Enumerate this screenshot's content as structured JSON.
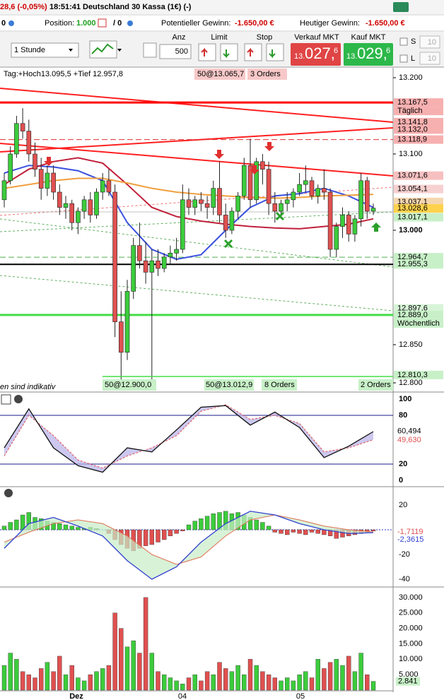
{
  "header": {
    "change": "28,6 (-0,05%)",
    "time": "18:51:41",
    "instrument": "Deutschland 30 Kassa (1€) (-)"
  },
  "status": {
    "zero": "0",
    "position_label": "Position:",
    "position": "1.000",
    "slash": "/ 0",
    "potential_label": "Potentieller Gewinn:",
    "potential": "-1.650,00 €",
    "today_label": "Heutiger Gewinn:",
    "today": "-1.650,00 €"
  },
  "toolbar": {
    "interval": "1 Stunde",
    "qty_label": "Anz",
    "qty": "500",
    "limit": "Limit",
    "stop": "Stop",
    "sell_label": "Verkauf MKT",
    "sell_price": [
      "13.",
      "027,",
      "6"
    ],
    "buy_label": "Kauf MKT",
    "buy_price": [
      "13.",
      "029,",
      "6"
    ],
    "s_label": "S",
    "s_value": "10",
    "l_label": "L",
    "l_value": "10"
  },
  "chart": {
    "day_info": "Tag:+Hoch13.095,5 +Tief 12.957,8",
    "top_orders": [
      "50@13.065,7",
      "3 Orders"
    ],
    "bottom_orders": [
      "50@12.900,0",
      "50@13.012,9",
      "8 Orders",
      "2 Orders"
    ],
    "disclaimer": "en sind indikativ",
    "x_labels": [
      "Dez",
      "04",
      "05"
    ],
    "price_ticks": [
      {
        "value": 13200,
        "label": "13.200"
      },
      {
        "value": 13100,
        "label": "13.100"
      },
      {
        "value": 13000,
        "label": "13.000"
      },
      {
        "value": 12850,
        "label": "12.850"
      },
      {
        "value": 12800,
        "label": "12.800"
      }
    ],
    "price_tags": [
      {
        "value": 13167.5,
        "label": "13.167,5",
        "caption": "Täglich",
        "color": "#f7b0b0",
        "line": "solid",
        "line_color": "#ff0000"
      },
      {
        "value": 13141.8,
        "label": "13.141,8",
        "color": "#f7b0b0"
      },
      {
        "value": 13132.0,
        "label": "13.132,0",
        "color": "#f7b0b0"
      },
      {
        "value": 13118.9,
        "label": "13.118,9",
        "color": "#f7b0b0",
        "line": "dashed",
        "line_color": "#e03030"
      },
      {
        "value": 13071.6,
        "label": "13.071,6",
        "color": "#f7c0c0"
      },
      {
        "value": 13054.1,
        "label": "13.054,1",
        "color": "#f7d0d0"
      },
      {
        "value": 13037.1,
        "label": "13.037,1",
        "color": "#f5d6b0"
      },
      {
        "value": 13028.6,
        "label": "13.028,6",
        "color": "#ffd24d"
      },
      {
        "value": 13017.1,
        "label": "13.017,1",
        "color": "#c8f0c8"
      },
      {
        "value": 12964.7,
        "label": "12.964,7",
        "color": "#c8f0c8",
        "line": "dashed",
        "line_color": "#50b050"
      },
      {
        "value": 12955.3,
        "label": "12.955,3",
        "color": "#c8f0c8",
        "line": "solid",
        "line_color": "#000000"
      },
      {
        "value": 12897.6,
        "label": "12.897,6",
        "color": "#d8f4d8"
      },
      {
        "value": 12889.0,
        "label": "12.889,0",
        "caption": "Wöchentlich",
        "color": "#c8f0c8",
        "line": "solid",
        "line_color": "#44dd44"
      },
      {
        "value": 12810.3,
        "label": "12.810,3",
        "color": "#c8f0c8"
      }
    ],
    "candles": [
      [
        13040,
        13075,
        13030,
        13065
      ],
      [
        13065,
        13110,
        13060,
        13100
      ],
      [
        13100,
        13150,
        13095,
        13140
      ],
      [
        13140,
        13160,
        13120,
        13130
      ],
      [
        13130,
        13145,
        13090,
        13100
      ],
      [
        13100,
        13115,
        13070,
        13080
      ],
      [
        13080,
        13095,
        13040,
        13055
      ],
      [
        13055,
        13085,
        13045,
        13075
      ],
      [
        13075,
        13085,
        13040,
        13050
      ],
      [
        13050,
        13060,
        13020,
        13030
      ],
      [
        13030,
        13045,
        13015,
        13035
      ],
      [
        13035,
        13040,
        13000,
        13010
      ],
      [
        13010,
        13030,
        12995,
        13025
      ],
      [
        13025,
        13045,
        13015,
        13040
      ],
      [
        13040,
        13050,
        13010,
        13020
      ],
      [
        13020,
        13055,
        13015,
        13050
      ],
      [
        13050,
        13075,
        13040,
        13065
      ],
      [
        13065,
        13080,
        13045,
        13050
      ],
      [
        13050,
        13060,
        12860,
        12880
      ],
      [
        12880,
        12920,
        12800,
        12840
      ],
      [
        12840,
        12935,
        12830,
        12920
      ],
      [
        12920,
        12990,
        12910,
        12980
      ],
      [
        12980,
        13010,
        12950,
        12960
      ],
      [
        12960,
        12985,
        12930,
        12945
      ],
      [
        12945,
        12975,
        12800,
        12960
      ],
      [
        12960,
        12975,
        12940,
        12950
      ],
      [
        12950,
        12970,
        12945,
        12965
      ],
      [
        12965,
        12980,
        12955,
        12970
      ],
      [
        12970,
        12990,
        12960,
        12975
      ],
      [
        12975,
        13060,
        12970,
        13040
      ],
      [
        13040,
        13055,
        13020,
        13030
      ],
      [
        13030,
        13045,
        13020,
        13040
      ],
      [
        13040,
        13050,
        13025,
        13035
      ],
      [
        13035,
        13045,
        13015,
        13030
      ],
      [
        13030,
        13065,
        13020,
        13055
      ],
      [
        13055,
        13090,
        13010,
        13020
      ],
      [
        13020,
        13035,
        12990,
        13000
      ],
      [
        13000,
        13030,
        12995,
        13025
      ],
      [
        13025,
        13050,
        13015,
        13045
      ],
      [
        13045,
        13095,
        13040,
        13085
      ],
      [
        13085,
        13120,
        13030,
        13040
      ],
      [
        13040,
        13095,
        13035,
        13090
      ],
      [
        13090,
        13100,
        13060,
        13080
      ],
      [
        13080,
        13090,
        13020,
        13035
      ],
      [
        13035,
        13050,
        13010,
        13025
      ],
      [
        13025,
        13040,
        13015,
        13035
      ],
      [
        13035,
        13050,
        13025,
        13040
      ],
      [
        13040,
        13055,
        13030,
        13050
      ],
      [
        13050,
        13075,
        13045,
        13060
      ],
      [
        13060,
        13085,
        13050,
        13065
      ],
      [
        13065,
        13070,
        13040,
        13045
      ],
      [
        13045,
        13060,
        13035,
        13055
      ],
      [
        13055,
        13080,
        13040,
        13050
      ],
      [
        13050,
        13055,
        12965,
        12975
      ],
      [
        12975,
        13010,
        12965,
        13005
      ],
      [
        13005,
        13030,
        12990,
        13020
      ],
      [
        13020,
        13025,
        12985,
        12995
      ],
      [
        12995,
        13020,
        12985,
        13015
      ],
      [
        13015,
        13075,
        13005,
        13065
      ],
      [
        13065,
        13070,
        13015,
        13025
      ],
      [
        13025,
        13035,
        13020,
        13029
      ]
    ],
    "averages": [
      {
        "color": "#3a50e0",
        "values": [
          13075,
          13085,
          13083,
          13078,
          13065,
          13010,
          12975,
          12962,
          12968,
          13000,
          13030,
          13045,
          13048,
          13055,
          13045,
          13030
        ]
      },
      {
        "color": "#c0203a",
        "values": [
          13060,
          13080,
          13090,
          13095,
          13088,
          13060,
          13030,
          13018,
          13012,
          13008,
          13005,
          13003,
          13002,
          13005,
          13008,
          13015
        ]
      },
      {
        "color": "#f0a040",
        "values": [
          13055,
          13060,
          13065,
          13068,
          13068,
          13062,
          13055,
          13050,
          13047,
          13045,
          13043,
          13042,
          13043,
          13045,
          13046,
          13047
        ]
      }
    ]
  },
  "stochastic": {
    "ticks": [
      100,
      80,
      20,
      0
    ],
    "k": [
      40,
      88,
      40,
      18,
      10,
      40,
      35,
      62,
      90,
      92,
      68,
      84,
      65,
      28,
      42,
      60
    ],
    "d": [
      30,
      80,
      55,
      25,
      15,
      30,
      40,
      55,
      85,
      93,
      75,
      80,
      70,
      35,
      40,
      50
    ],
    "tags": [
      {
        "value": 60.494,
        "label": "60,494",
        "color": "#ffffff"
      },
      {
        "value": 49.63,
        "label": "49,630",
        "color": "#ffffff",
        "text_color": "#e05050"
      }
    ]
  },
  "macd": {
    "ticks": [
      20,
      -20,
      -40
    ],
    "macd": [
      -15,
      5,
      10,
      3,
      -5,
      -25,
      -40,
      -30,
      -10,
      5,
      15,
      12,
      5,
      0,
      -3,
      -2.3615
    ],
    "signal": [
      -10,
      -2,
      5,
      8,
      5,
      -5,
      -20,
      -28,
      -22,
      -5,
      8,
      12,
      8,
      3,
      0,
      -1.7119
    ],
    "histogram": [
      3,
      6,
      8,
      12,
      14,
      10,
      9,
      7,
      6,
      5,
      4,
      3,
      2,
      1,
      2,
      1,
      0,
      -3,
      -8,
      -12,
      -15,
      -17,
      -15,
      -13,
      -12,
      -10,
      -8,
      -5,
      -3,
      -1,
      4,
      7,
      9,
      11,
      13,
      14,
      15,
      13,
      14,
      12,
      10,
      8,
      6,
      3,
      -2,
      -3,
      -4,
      -2,
      -3,
      -4,
      -2,
      -3,
      -4,
      -5,
      -7,
      -6,
      -5,
      -4,
      -3,
      -2,
      -1
    ],
    "tags": [
      {
        "value": -1.7119,
        "label": "-1,7119",
        "color": "#ffffff",
        "text_color": "#e05050"
      },
      {
        "value": -2.3615,
        "label": "-2,3615",
        "color": "#ffffff",
        "text_color": "#3040d0"
      }
    ]
  },
  "volume": {
    "ticks": [
      {
        "value": 30000,
        "label": "30.000"
      },
      {
        "value": 25000,
        "label": "25.000"
      },
      {
        "value": 20000,
        "label": "20.000"
      },
      {
        "value": 15000,
        "label": "15.000"
      },
      {
        "value": 10000,
        "label": "10.000"
      },
      {
        "value": 5000,
        "label": "5.000"
      }
    ],
    "values": [
      8000,
      12000,
      10000,
      6000,
      5000,
      4000,
      7000,
      9000,
      6000,
      11000,
      5000,
      8000,
      4000,
      3000,
      5000,
      6000,
      7000,
      8000,
      25000,
      20000,
      14000,
      16000,
      12000,
      30000,
      12000,
      6000,
      5000,
      4000,
      3000,
      2000,
      4000,
      5000,
      3000,
      6000,
      5000,
      9000,
      7000,
      6000,
      8000,
      5000,
      10000,
      8000,
      6000,
      5000,
      4000,
      3000,
      4000,
      3000,
      5000,
      6000,
      4000,
      10000,
      7000,
      9000,
      10000,
      8000,
      11000,
      6000,
      12000,
      5000,
      2841
    ],
    "last_label": "2.841"
  }
}
